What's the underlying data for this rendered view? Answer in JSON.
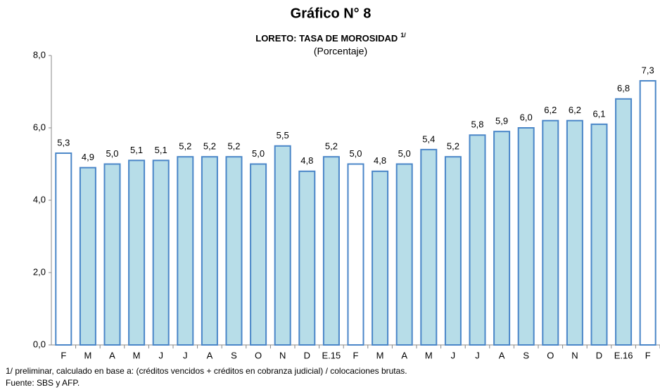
{
  "chart_data": {
    "type": "bar",
    "title": "Gráfico N° 8",
    "subtitle": "LORETO: TASA DE MOROSIDAD",
    "subtitle_note": "1/",
    "unit": "(Porcentaje)",
    "categories": [
      "F",
      "M",
      "A",
      "M",
      "J",
      "J",
      "A",
      "S",
      "O",
      "N",
      "D",
      "E.15",
      "F",
      "M",
      "A",
      "M",
      "J",
      "J",
      "A",
      "S",
      "O",
      "N",
      "D",
      "E.16",
      "F"
    ],
    "values": [
      5.3,
      4.9,
      5.0,
      5.1,
      5.1,
      5.2,
      5.2,
      5.2,
      5.0,
      5.5,
      4.8,
      5.2,
      5.0,
      4.8,
      5.0,
      5.4,
      5.2,
      5.8,
      5.9,
      6.0,
      6.2,
      6.2,
      6.1,
      6.8,
      7.3
    ],
    "value_labels": [
      "5,3",
      "4,9",
      "5,0",
      "5,1",
      "5,1",
      "5,2",
      "5,2",
      "5,2",
      "5,0",
      "5,5",
      "4,8",
      "5,2",
      "5,0",
      "4,8",
      "5,0",
      "5,4",
      "5,2",
      "5,8",
      "5,9",
      "6,0",
      "6,2",
      "6,2",
      "6,1",
      "6,8",
      "7,3"
    ],
    "colors": [
      "#ffffff",
      "#b7dde8",
      "#b7dde8",
      "#b7dde8",
      "#b7dde8",
      "#b7dde8",
      "#b7dde8",
      "#b7dde8",
      "#b7dde8",
      "#b7dde8",
      "#b7dde8",
      "#b7dde8",
      "#ffffff",
      "#b7dde8",
      "#b7dde8",
      "#b7dde8",
      "#b7dde8",
      "#b7dde8",
      "#b7dde8",
      "#b7dde8",
      "#b7dde8",
      "#b7dde8",
      "#b7dde8",
      "#b7dde8",
      "#ffffff"
    ],
    "edge_color": "#4a86c8",
    "ylim": [
      0,
      8
    ],
    "yticks": [
      {
        "value": 0,
        "label": "0,0"
      },
      {
        "value": 2,
        "label": "2,0"
      },
      {
        "value": 4,
        "label": "4,0"
      },
      {
        "value": 6,
        "label": "6,0"
      },
      {
        "value": 8,
        "label": "8,0"
      }
    ],
    "grid": false,
    "footnotes": [
      "1/ preliminar, calculado en base a: (créditos vencidos + créditos en cobranza judicial) / colocaciones brutas.",
      "Fuente: SBS  y AFP."
    ]
  }
}
